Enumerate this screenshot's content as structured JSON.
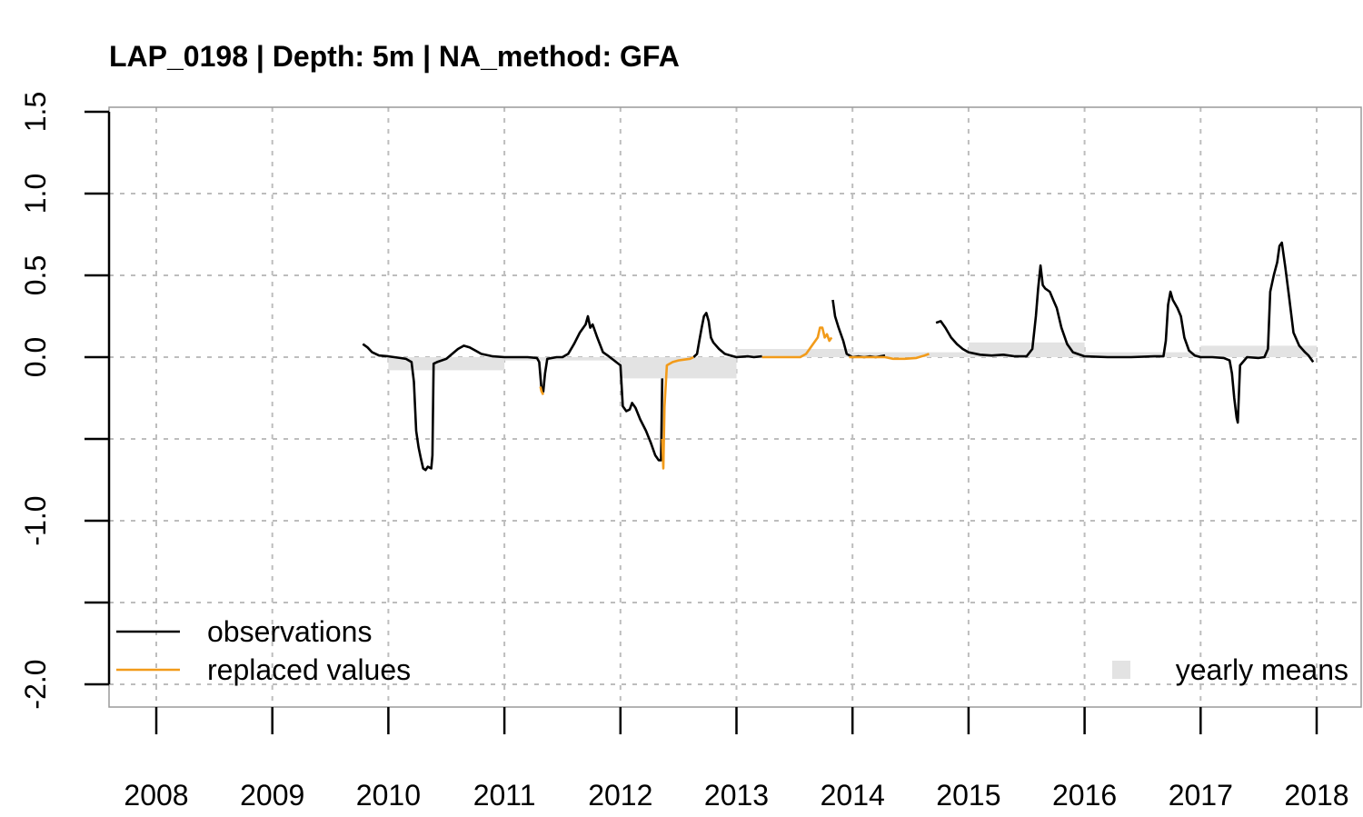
{
  "chart_data": {
    "type": "line",
    "title": "LAP_0198 | Depth: 5m | NA_method: GFA",
    "xlabel": "",
    "ylabel": "",
    "xlim": [
      2007.6,
      2018.4
    ],
    "ylim": [
      -2.1,
      1.5
    ],
    "x_ticks": [
      "2008",
      "2009",
      "2010",
      "2011",
      "2012",
      "2013",
      "2014",
      "2015",
      "2016",
      "2017",
      "2018"
    ],
    "y_ticks": [
      "-2.0",
      "-1.5",
      "-1.0",
      "-0.5",
      "0.0",
      "0.5",
      "1.0",
      "1.5"
    ],
    "y_tick_labels_visible": [
      "-2.0",
      "-1.0",
      "0.0",
      "0.5",
      "1.0",
      "1.5"
    ],
    "grid": true,
    "grid_style": "dotted",
    "colors": {
      "observations": "#000000",
      "replaced": "#f29b1a",
      "yearly_means": "#e3e3e3",
      "grid": "#bdbdbd",
      "box": "#9a9a9a"
    },
    "legend": {
      "placement": "bottom-left",
      "observations_label": "observations",
      "replaced_label": "replaced values",
      "yearly_means_label": "yearly means",
      "yearly_means_placement": "bottom-right"
    },
    "yearly_means": [
      {
        "x0": 2010.0,
        "x1": 2011.0,
        "value": -0.08
      },
      {
        "x0": 2011.0,
        "x1": 2012.0,
        "value": -0.02
      },
      {
        "x0": 2012.0,
        "x1": 2013.0,
        "value": -0.13
      },
      {
        "x0": 2013.0,
        "x1": 2014.0,
        "value": 0.05
      },
      {
        "x0": 2014.0,
        "x1": 2015.0,
        "value": 0.03
      },
      {
        "x0": 2015.0,
        "x1": 2016.0,
        "value": 0.09
      },
      {
        "x0": 2016.0,
        "x1": 2017.0,
        "value": 0.03
      },
      {
        "x0": 2017.0,
        "x1": 2018.0,
        "value": 0.07
      }
    ],
    "series": [
      {
        "name": "observations",
        "segments": [
          [
            [
              2009.78,
              0.08
            ],
            [
              2009.82,
              0.06
            ],
            [
              2009.86,
              0.03
            ],
            [
              2009.92,
              0.01
            ],
            [
              2010.0,
              0.005
            ],
            [
              2010.05,
              0.0
            ],
            [
              2010.1,
              -0.005
            ],
            [
              2010.15,
              -0.01
            ],
            [
              2010.2,
              -0.03
            ],
            [
              2010.22,
              -0.15
            ],
            [
              2010.24,
              -0.45
            ],
            [
              2010.26,
              -0.55
            ],
            [
              2010.28,
              -0.62
            ],
            [
              2010.3,
              -0.68
            ],
            [
              2010.32,
              -0.69
            ],
            [
              2010.34,
              -0.67
            ],
            [
              2010.37,
              -0.68
            ],
            [
              2010.38,
              -0.6
            ],
            [
              2010.39,
              -0.04
            ],
            [
              2010.42,
              -0.03
            ],
            [
              2010.5,
              -0.01
            ],
            [
              2010.6,
              0.05
            ],
            [
              2010.65,
              0.07
            ],
            [
              2010.7,
              0.06
            ],
            [
              2010.75,
              0.04
            ],
            [
              2010.8,
              0.02
            ],
            [
              2010.9,
              0.005
            ],
            [
              2011.0,
              0.0
            ],
            [
              2011.1,
              0.0
            ],
            [
              2011.2,
              0.0
            ],
            [
              2011.28,
              -0.005
            ],
            [
              2011.3,
              -0.03
            ],
            [
              2011.32,
              -0.2
            ],
            [
              2011.335,
              -0.21
            ],
            [
              2011.35,
              -0.1
            ],
            [
              2011.37,
              -0.01
            ],
            [
              2011.45,
              0.0
            ],
            [
              2011.5,
              0.0
            ],
            [
              2011.55,
              0.02
            ],
            [
              2011.6,
              0.08
            ],
            [
              2011.65,
              0.15
            ],
            [
              2011.7,
              0.2
            ],
            [
              2011.72,
              0.25
            ],
            [
              2011.74,
              0.18
            ],
            [
              2011.76,
              0.2
            ],
            [
              2011.8,
              0.12
            ],
            [
              2011.85,
              0.03
            ],
            [
              2011.9,
              0.005
            ],
            [
              2012.0,
              -0.05
            ],
            [
              2012.02,
              -0.3
            ],
            [
              2012.05,
              -0.33
            ],
            [
              2012.08,
              -0.32
            ],
            [
              2012.1,
              -0.28
            ],
            [
              2012.13,
              -0.31
            ],
            [
              2012.17,
              -0.38
            ],
            [
              2012.22,
              -0.45
            ],
            [
              2012.26,
              -0.52
            ],
            [
              2012.3,
              -0.6
            ],
            [
              2012.33,
              -0.63
            ],
            [
              2012.35,
              -0.63
            ],
            [
              2012.36,
              -0.13
            ]
          ],
          [
            [
              2012.63,
              0.0
            ],
            [
              2012.66,
              0.02
            ],
            [
              2012.68,
              0.1
            ],
            [
              2012.7,
              0.18
            ],
            [
              2012.72,
              0.25
            ],
            [
              2012.74,
              0.27
            ],
            [
              2012.76,
              0.22
            ],
            [
              2012.78,
              0.12
            ],
            [
              2012.8,
              0.09
            ],
            [
              2012.85,
              0.05
            ],
            [
              2012.9,
              0.02
            ],
            [
              2012.95,
              0.01
            ],
            [
              2013.0,
              0.0
            ],
            [
              2013.1,
              0.005
            ],
            [
              2013.15,
              0.0
            ],
            [
              2013.22,
              0.005
            ]
          ],
          [
            [
              2013.83,
              0.35
            ],
            [
              2013.85,
              0.25
            ],
            [
              2013.88,
              0.18
            ],
            [
              2013.92,
              0.1
            ],
            [
              2013.95,
              0.02
            ],
            [
              2014.0,
              0.0
            ],
            [
              2014.05,
              0.005
            ],
            [
              2014.1,
              0.0
            ],
            [
              2014.15,
              0.005
            ],
            [
              2014.2,
              0.0
            ],
            [
              2014.28,
              0.01
            ]
          ],
          [
            [
              2014.72,
              0.21
            ],
            [
              2014.76,
              0.22
            ],
            [
              2014.8,
              0.18
            ],
            [
              2014.85,
              0.12
            ],
            [
              2014.9,
              0.08
            ],
            [
              2014.95,
              0.05
            ],
            [
              2015.0,
              0.03
            ],
            [
              2015.1,
              0.015
            ],
            [
              2015.2,
              0.01
            ],
            [
              2015.3,
              0.015
            ],
            [
              2015.4,
              0.005
            ],
            [
              2015.5,
              0.005
            ],
            [
              2015.55,
              0.05
            ],
            [
              2015.58,
              0.25
            ],
            [
              2015.6,
              0.42
            ],
            [
              2015.62,
              0.56
            ],
            [
              2015.64,
              0.44
            ],
            [
              2015.66,
              0.42
            ],
            [
              2015.7,
              0.4
            ],
            [
              2015.73,
              0.35
            ],
            [
              2015.76,
              0.3
            ],
            [
              2015.8,
              0.18
            ],
            [
              2015.85,
              0.08
            ],
            [
              2015.9,
              0.03
            ],
            [
              2016.0,
              0.005
            ],
            [
              2016.2,
              0.0
            ],
            [
              2016.4,
              0.0
            ],
            [
              2016.6,
              0.005
            ],
            [
              2016.68,
              0.005
            ],
            [
              2016.7,
              0.1
            ],
            [
              2016.72,
              0.32
            ],
            [
              2016.74,
              0.4
            ],
            [
              2016.76,
              0.35
            ],
            [
              2016.8,
              0.3
            ],
            [
              2016.83,
              0.25
            ],
            [
              2016.86,
              0.12
            ],
            [
              2016.9,
              0.04
            ],
            [
              2016.95,
              0.01
            ],
            [
              2017.0,
              0.0
            ],
            [
              2017.1,
              0.0
            ],
            [
              2017.2,
              -0.005
            ],
            [
              2017.25,
              -0.02
            ],
            [
              2017.27,
              -0.1
            ],
            [
              2017.29,
              -0.25
            ],
            [
              2017.31,
              -0.37
            ],
            [
              2017.32,
              -0.4
            ],
            [
              2017.34,
              -0.05
            ],
            [
              2017.4,
              0.0
            ],
            [
              2017.5,
              -0.005
            ],
            [
              2017.55,
              0.0
            ],
            [
              2017.58,
              0.05
            ],
            [
              2017.6,
              0.4
            ],
            [
              2017.63,
              0.5
            ],
            [
              2017.66,
              0.58
            ],
            [
              2017.68,
              0.68
            ],
            [
              2017.7,
              0.7
            ],
            [
              2017.73,
              0.55
            ],
            [
              2017.76,
              0.38
            ],
            [
              2017.8,
              0.15
            ],
            [
              2017.85,
              0.07
            ],
            [
              2017.9,
              0.03
            ],
            [
              2017.93,
              0.01
            ],
            [
              2017.97,
              -0.03
            ]
          ]
        ]
      },
      {
        "name": "replaced values",
        "segments": [
          [
            [
              2011.31,
              -0.18
            ],
            [
              2011.32,
              -0.21
            ],
            [
              2011.335,
              -0.23
            ]
          ],
          [
            [
              2012.36,
              -0.5
            ],
            [
              2012.37,
              -0.68
            ],
            [
              2012.38,
              -0.3
            ],
            [
              2012.4,
              -0.05
            ],
            [
              2012.45,
              -0.03
            ],
            [
              2012.5,
              -0.02
            ],
            [
              2012.55,
              -0.015
            ],
            [
              2012.6,
              -0.01
            ],
            [
              2012.63,
              0.0
            ]
          ],
          [
            [
              2013.22,
              0.0
            ],
            [
              2013.4,
              0.0
            ],
            [
              2013.55,
              0.0
            ],
            [
              2013.6,
              0.02
            ],
            [
              2013.65,
              0.07
            ],
            [
              2013.7,
              0.12
            ],
            [
              2013.72,
              0.18
            ],
            [
              2013.74,
              0.18
            ],
            [
              2013.76,
              0.12
            ],
            [
              2013.78,
              0.14
            ],
            [
              2013.8,
              0.1
            ],
            [
              2013.82,
              0.12
            ]
          ],
          [
            [
              2013.97,
              0.0
            ],
            [
              2014.1,
              0.0
            ],
            [
              2014.2,
              0.0
            ],
            [
              2014.28,
              0.0
            ],
            [
              2014.35,
              -0.01
            ],
            [
              2014.45,
              -0.01
            ],
            [
              2014.55,
              -0.005
            ],
            [
              2014.62,
              0.01
            ],
            [
              2014.66,
              0.02
            ]
          ]
        ]
      }
    ]
  }
}
